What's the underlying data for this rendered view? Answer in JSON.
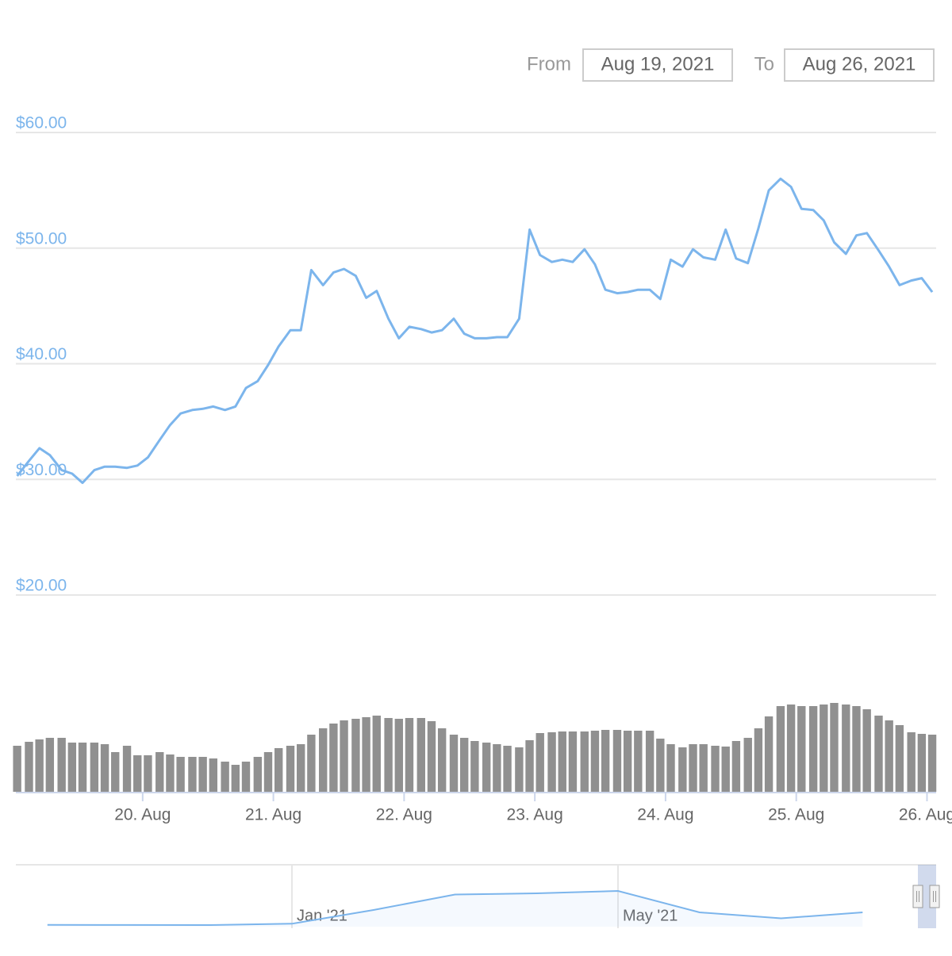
{
  "range_selector": {
    "from_label": "From",
    "from": "Aug 19, 2021",
    "to_label": "To",
    "to": "Aug 26, 2021"
  },
  "chart_data": {
    "type": "stock",
    "x": [
      19.04,
      19.13,
      19.21,
      19.29,
      19.38,
      19.46,
      19.54,
      19.63,
      19.71,
      19.79,
      19.88,
      19.96,
      20.04,
      20.13,
      20.21,
      20.29,
      20.38,
      20.46,
      20.54,
      20.63,
      20.71,
      20.79,
      20.88,
      20.96,
      21.04,
      21.13,
      21.21,
      21.29,
      21.38,
      21.46,
      21.54,
      21.63,
      21.71,
      21.79,
      21.88,
      21.96,
      22.04,
      22.13,
      22.21,
      22.29,
      22.38,
      22.46,
      22.54,
      22.63,
      22.71,
      22.79,
      22.88,
      22.96,
      23.04,
      23.13,
      23.21,
      23.29,
      23.38,
      23.46,
      23.54,
      23.63,
      23.71,
      23.79,
      23.88,
      23.96,
      24.04,
      24.13,
      24.21,
      24.29,
      24.38,
      24.46,
      24.54,
      24.63,
      24.71,
      24.79,
      24.88,
      24.96,
      25.04,
      25.13,
      25.21,
      25.29,
      25.38,
      25.46,
      25.54,
      25.63,
      25.71,
      25.79,
      25.88,
      25.96,
      26.04
    ],
    "series": [
      {
        "type": "line",
        "color": "#7cb5ec",
        "values": [
          30.3,
          31.6,
          32.7,
          32.1,
          30.8,
          30.5,
          29.7,
          30.8,
          31.1,
          31.1,
          31.0,
          31.2,
          31.9,
          33.4,
          34.7,
          35.7,
          36.0,
          36.1,
          36.3,
          36.0,
          36.3,
          37.9,
          38.5,
          39.9,
          41.5,
          42.9,
          42.9,
          48.1,
          46.8,
          47.9,
          48.2,
          47.6,
          45.7,
          46.3,
          43.9,
          42.2,
          43.2,
          43.0,
          42.7,
          42.9,
          43.9,
          42.6,
          42.2,
          42.2,
          42.3,
          42.3,
          43.9,
          51.6,
          49.4,
          48.8,
          49.0,
          48.8,
          49.9,
          48.6,
          46.4,
          46.1,
          46.2,
          46.4,
          46.4,
          45.6,
          49.0,
          48.4,
          49.9,
          49.2,
          49.0,
          51.6,
          49.1,
          48.7,
          51.7,
          55.0,
          56.0,
          55.3,
          53.4,
          53.3,
          52.4,
          50.5,
          49.5,
          51.1,
          51.3,
          49.8,
          48.4,
          46.8,
          47.2,
          47.4,
          46.2
        ]
      },
      {
        "type": "column",
        "axis": "y2",
        "color": "#909090",
        "values": [
          58,
          63,
          66,
          68,
          68,
          62,
          62,
          62,
          60,
          50,
          58,
          46,
          46,
          50,
          47,
          44,
          44,
          44,
          42,
          38,
          34,
          38,
          44,
          50,
          55,
          58,
          60,
          72,
          80,
          86,
          90,
          92,
          94,
          96,
          93,
          92,
          93,
          93,
          89,
          80,
          72,
          68,
          64,
          62,
          60,
          58,
          56,
          65,
          74,
          75,
          76,
          76,
          76,
          77,
          78,
          78,
          77,
          77,
          77,
          67,
          60,
          56,
          60,
          60,
          58,
          57,
          64,
          68,
          80,
          95,
          108,
          110,
          108,
          108,
          110,
          112,
          110,
          108,
          104,
          96,
          90,
          84,
          75,
          73,
          72
        ]
      }
    ],
    "ylim": [
      20,
      60
    ],
    "yticks": [
      {
        "value": 20,
        "label": "$20.00"
      },
      {
        "value": 30,
        "label": "$30.00"
      },
      {
        "value": 40,
        "label": "$40.00"
      },
      {
        "value": 50,
        "label": "$50.00"
      },
      {
        "value": 60,
        "label": "$60.00"
      }
    ],
    "y2lim": [
      0,
      150
    ],
    "xlim": [
      19.03,
      26.07
    ],
    "xticks": [
      {
        "value": 20,
        "label": "20. Aug"
      },
      {
        "value": 21,
        "label": "21. Aug"
      },
      {
        "value": 22,
        "label": "22. Aug"
      },
      {
        "value": 23,
        "label": "23. Aug"
      },
      {
        "value": 24,
        "label": "24. Aug"
      },
      {
        "value": 25,
        "label": "25. Aug"
      },
      {
        "value": 26,
        "label": "26. Aug"
      }
    ],
    "grid": true,
    "navigator": {
      "color": "#7cb5ec",
      "x": [
        "2020-10",
        "2020-11",
        "2020-12",
        "2021-01",
        "2021-02",
        "2021-03",
        "2021-04",
        "2021-05",
        "2021-06",
        "2021-07",
        "2021-08"
      ],
      "values": [
        1.5,
        1.4,
        1.3,
        2.5,
        14,
        27,
        28,
        30,
        12,
        7,
        12
      ],
      "ylim": [
        0,
        50
      ],
      "xticks": [
        {
          "value": "2021-01",
          "label": "Jan '21"
        },
        {
          "value": "2021-05",
          "label": "May '21"
        }
      ]
    }
  }
}
